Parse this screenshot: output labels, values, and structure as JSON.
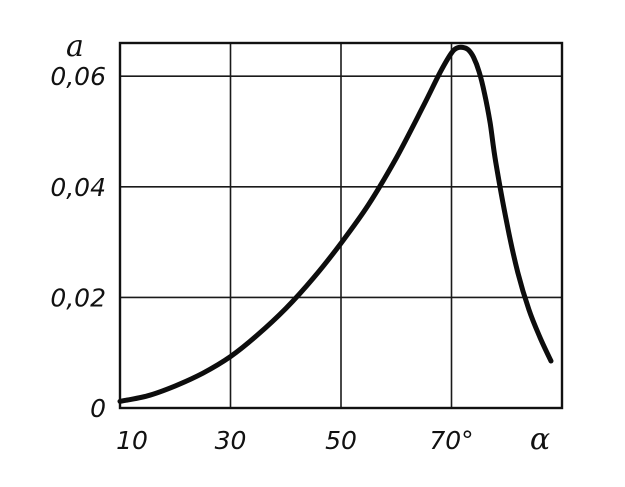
{
  "chart_data": {
    "type": "line",
    "title": "",
    "xlabel": "α",
    "ylabel": "a",
    "xlim": [
      10,
      90
    ],
    "ylim": [
      0,
      0.066
    ],
    "grid": true,
    "x_ticks": [
      10,
      30,
      50,
      70
    ],
    "x_tick_labels": [
      "10",
      "30",
      "50",
      "70°"
    ],
    "y_ticks": [
      0,
      0.02,
      0.04,
      0.06
    ],
    "y_tick_labels": [
      "0",
      "0,02",
      "0,04",
      "0,06"
    ],
    "series": [
      {
        "x": [
          10,
          15,
          20,
          25,
          30,
          35,
          40,
          45,
          50,
          55,
          60,
          65,
          68,
          70,
          71,
          72,
          73,
          74,
          75,
          76,
          77,
          78,
          80,
          82,
          84,
          86,
          88
        ],
        "y": [
          0.0012,
          0.0022,
          0.004,
          0.0063,
          0.0093,
          0.0133,
          0.018,
          0.0235,
          0.0298,
          0.0368,
          0.0452,
          0.0548,
          0.0608,
          0.0642,
          0.0651,
          0.0652,
          0.0648,
          0.0634,
          0.0608,
          0.0568,
          0.0515,
          0.0445,
          0.0335,
          0.0245,
          0.0178,
          0.0128,
          0.0085
        ]
      }
    ]
  }
}
